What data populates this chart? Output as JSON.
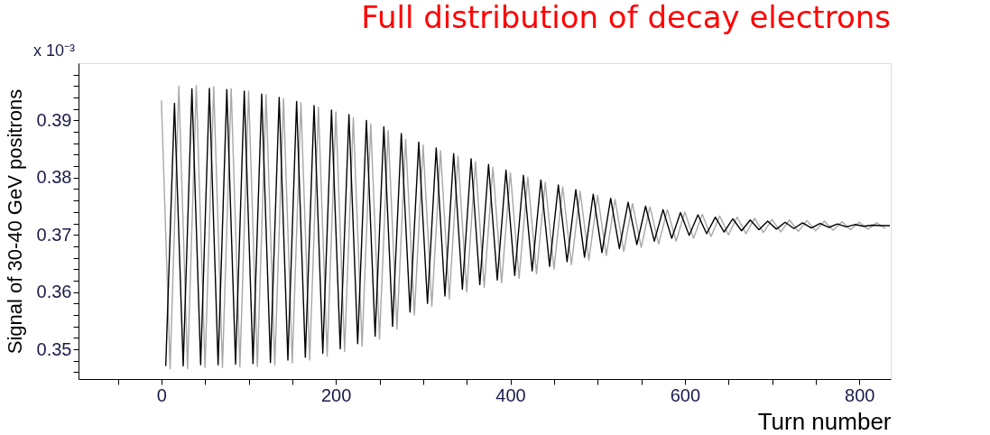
{
  "chart_data": {
    "type": "line",
    "title": "Full distribution of decay electrons",
    "xlabel": "Turn number",
    "ylabel": "Signal of 30-40 GeV positrons",
    "annotations": [
      "x 10⁻³"
    ],
    "xlim": [
      -95,
      836
    ],
    "xticks": [
      {
        "value": -50,
        "label": null
      },
      0,
      {
        "value": 50,
        "label": null
      },
      {
        "value": 100,
        "label": null
      },
      {
        "value": 150,
        "label": null
      },
      200,
      {
        "value": 250,
        "label": null
      },
      {
        "value": 300,
        "label": null
      },
      {
        "value": 350,
        "label": null
      },
      400,
      {
        "value": 450,
        "label": null
      },
      {
        "value": 500,
        "label": null
      },
      {
        "value": 550,
        "label": null
      },
      600,
      {
        "value": 650,
        "label": null
      },
      {
        "value": 700,
        "label": null
      },
      {
        "value": 750,
        "label": null
      },
      800
    ],
    "ylim": [
      0.3448,
      0.4
    ],
    "yticks": [
      {
        "value": 0.346,
        "label": null
      },
      {
        "value": 0.348,
        "label": null
      },
      0.35,
      {
        "value": 0.352,
        "label": null
      },
      {
        "value": 0.354,
        "label": null
      },
      {
        "value": 0.356,
        "label": null
      },
      {
        "value": 0.358,
        "label": null
      },
      0.36,
      {
        "value": 0.362,
        "label": null
      },
      {
        "value": 0.364,
        "label": null
      },
      {
        "value": 0.366,
        "label": null
      },
      {
        "value": 0.368,
        "label": null
      },
      0.37,
      {
        "value": 0.372,
        "label": null
      },
      {
        "value": 0.374,
        "label": null
      },
      {
        "value": 0.376,
        "label": null
      },
      {
        "value": 0.378,
        "label": null
      },
      0.38,
      {
        "value": 0.382,
        "label": null
      },
      {
        "value": 0.384,
        "label": null
      },
      {
        "value": 0.386,
        "label": null
      },
      {
        "value": 0.388,
        "label": null
      },
      0.39,
      {
        "value": 0.392,
        "label": null
      },
      {
        "value": 0.394,
        "label": null
      },
      {
        "value": 0.396,
        "label": null
      },
      {
        "value": 0.398,
        "label": null
      }
    ],
    "grid": false,
    "marker": "none",
    "line_style": "solid",
    "series": [
      {
        "color": "#a8a8a8",
        "x": [
          0,
          10,
          20,
          30,
          40,
          50,
          60,
          70,
          80,
          90,
          100,
          110,
          120,
          130,
          140,
          150,
          160,
          170,
          180,
          190,
          200,
          210,
          220,
          230,
          240,
          250,
          260,
          270,
          280,
          290,
          300,
          310,
          320,
          330,
          340,
          350,
          360,
          370,
          380,
          390,
          400,
          410,
          420,
          430,
          440,
          450,
          460,
          470,
          480,
          490,
          500,
          510,
          520,
          530,
          540,
          550,
          560,
          570,
          580,
          590,
          600,
          610,
          620,
          630,
          640,
          650,
          660,
          670,
          680,
          690,
          700,
          710,
          720,
          730,
          740,
          750,
          760,
          770,
          780,
          790,
          800,
          810,
          820,
          830
        ],
        "values": [
          0.3935,
          0.3466,
          0.396,
          0.3466,
          0.3961,
          0.3468,
          0.3959,
          0.3468,
          0.3956,
          0.3469,
          0.3951,
          0.347,
          0.3945,
          0.3472,
          0.3938,
          0.3476,
          0.3931,
          0.3481,
          0.3923,
          0.3488,
          0.3915,
          0.3496,
          0.3905,
          0.3505,
          0.3894,
          0.3518,
          0.3882,
          0.3535,
          0.3867,
          0.356,
          0.3857,
          0.3575,
          0.3847,
          0.3588,
          0.3838,
          0.36,
          0.3828,
          0.3608,
          0.3818,
          0.3616,
          0.3809,
          0.3624,
          0.3801,
          0.3632,
          0.3792,
          0.364,
          0.3784,
          0.3648,
          0.3776,
          0.3656,
          0.3769,
          0.3664,
          0.3762,
          0.3671,
          0.3755,
          0.3678,
          0.3749,
          0.3684,
          0.3744,
          0.3689,
          0.374,
          0.3694,
          0.3736,
          0.3697,
          0.3733,
          0.37,
          0.3731,
          0.3702,
          0.3729,
          0.3704,
          0.3727,
          0.3705,
          0.3726,
          0.3706,
          0.3725,
          0.3707,
          0.3724,
          0.3708,
          0.3723,
          0.3709,
          0.3722,
          0.371,
          0.3721,
          0.3711
        ]
      },
      {
        "color": "#000000",
        "x": [
          5,
          15,
          25,
          35,
          45,
          55,
          65,
          75,
          85,
          95,
          105,
          115,
          125,
          135,
          145,
          155,
          165,
          175,
          185,
          195,
          205,
          215,
          225,
          235,
          245,
          255,
          265,
          275,
          285,
          295,
          305,
          315,
          325,
          335,
          345,
          355,
          365,
          375,
          385,
          395,
          405,
          415,
          425,
          435,
          445,
          455,
          465,
          475,
          485,
          495,
          505,
          515,
          525,
          535,
          545,
          555,
          565,
          575,
          585,
          595,
          605,
          615,
          625,
          635,
          645,
          655,
          665,
          675,
          685,
          695,
          705,
          715,
          725,
          735,
          745,
          755,
          765,
          775,
          785,
          795,
          805,
          815,
          825,
          835
        ],
        "values": [
          0.3471,
          0.393,
          0.3471,
          0.3955,
          0.3473,
          0.3956,
          0.3473,
          0.3954,
          0.3474,
          0.3951,
          0.3475,
          0.3946,
          0.3477,
          0.394,
          0.3481,
          0.3933,
          0.3486,
          0.3926,
          0.3493,
          0.3918,
          0.3501,
          0.391,
          0.351,
          0.39,
          0.3523,
          0.3889,
          0.354,
          0.3877,
          0.3565,
          0.3862,
          0.358,
          0.3852,
          0.3593,
          0.3842,
          0.3605,
          0.3833,
          0.3613,
          0.3823,
          0.3621,
          0.3813,
          0.3629,
          0.3804,
          0.3637,
          0.3796,
          0.3645,
          0.3787,
          0.3653,
          0.3779,
          0.3661,
          0.3771,
          0.3669,
          0.3764,
          0.3676,
          0.3757,
          0.3683,
          0.375,
          0.3689,
          0.3744,
          0.3694,
          0.3739,
          0.3699,
          0.3735,
          0.3702,
          0.3731,
          0.3705,
          0.3728,
          0.3707,
          0.3726,
          0.3709,
          0.3724,
          0.371,
          0.3722,
          0.3711,
          0.3721,
          0.3712,
          0.372,
          0.3713,
          0.3719,
          0.3714,
          0.3718,
          0.3715,
          0.3717,
          0.3716,
          0.3716
        ]
      }
    ]
  }
}
